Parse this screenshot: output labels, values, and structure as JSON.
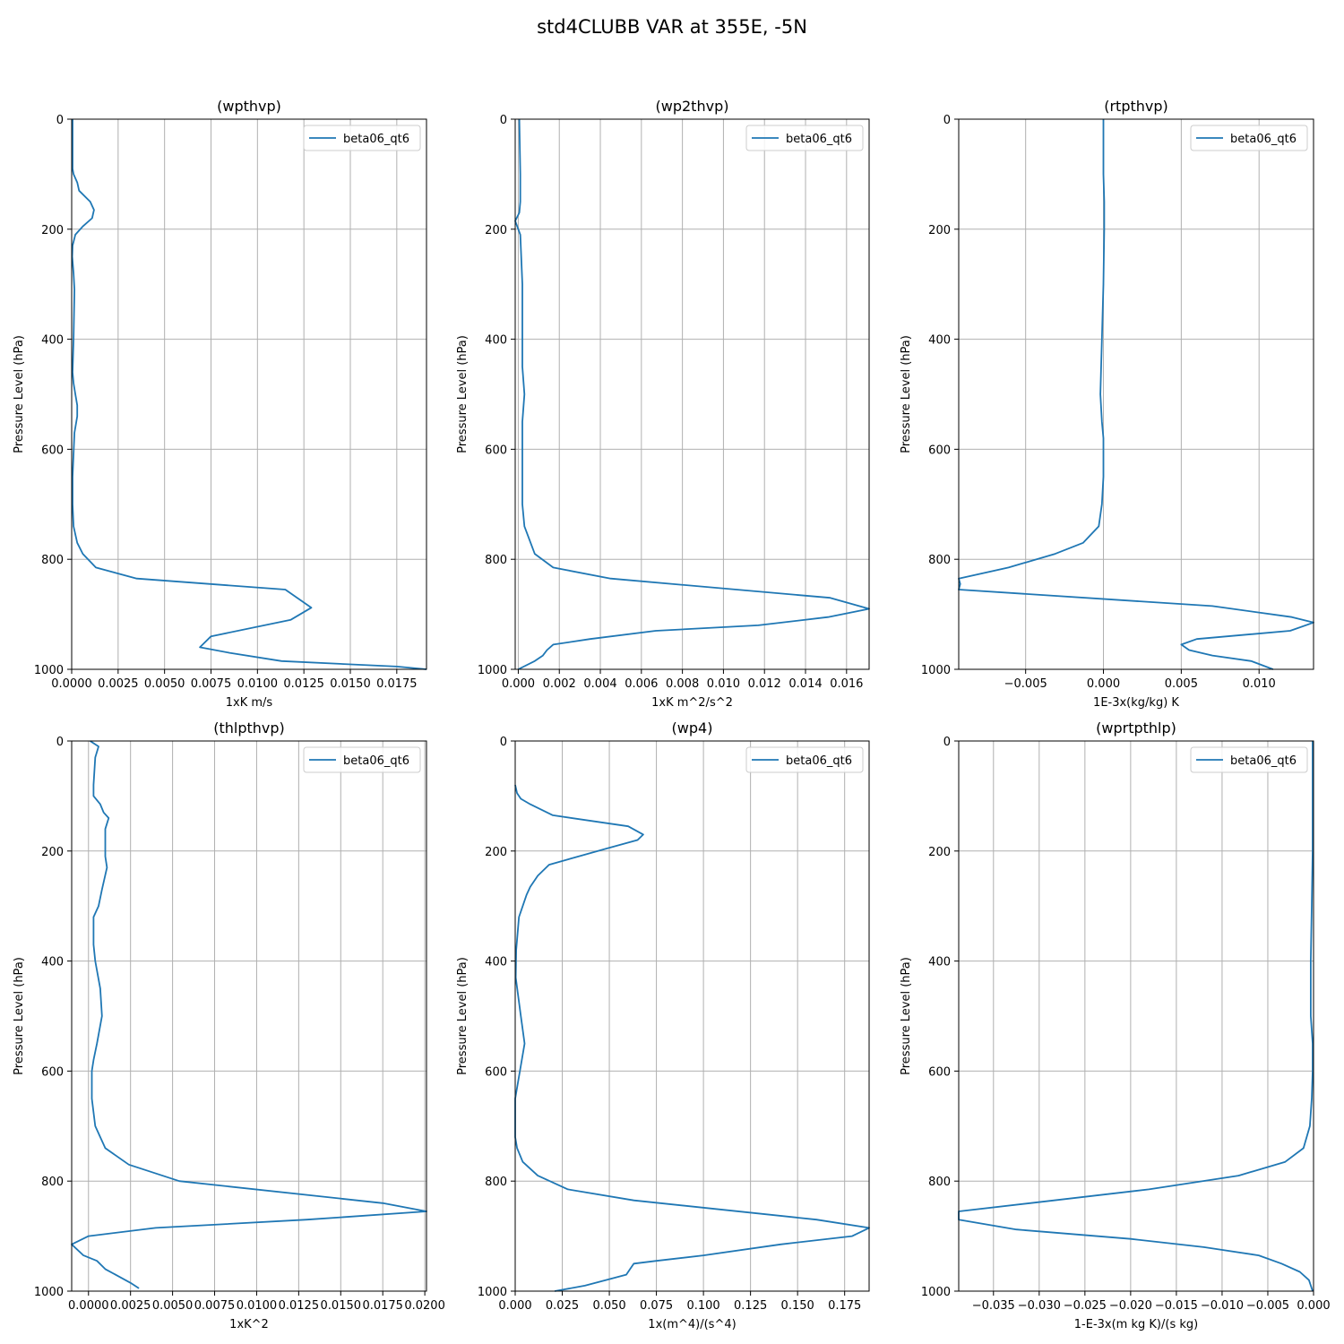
{
  "figure_title": "std4CLUBB VAR at 355E, -5N",
  "colors": {
    "series": "#1f77b4",
    "grid": "#b0b0b0"
  },
  "chart_data": [
    {
      "type": "line",
      "title": "(wpthvp)",
      "xlabel": "1xK m/s",
      "ylabel": "Pressure Level (hPa)",
      "xlim": [
        0,
        0.0191
      ],
      "ylim": [
        1000,
        0
      ],
      "grid": true,
      "legend": "top-right",
      "xticks": [
        0,
        0.0025,
        0.005,
        0.0075,
        0.01,
        0.0125,
        0.015,
        0.0175
      ],
      "xtick_labels": [
        "0.0000",
        "0.0025",
        "0.0050",
        "0.0075",
        "0.0100",
        "0.0125",
        "0.0150",
        "0.0175"
      ],
      "yticks": [
        0,
        200,
        400,
        600,
        800,
        1000
      ],
      "ytick_labels": [
        "0",
        "200",
        "400",
        "600",
        "800",
        "1000"
      ],
      "series": [
        {
          "name": "beta06_qt6",
          "x": [
            5e-05,
            5e-05,
            5e-05,
            0.0001,
            0.0003,
            0.0004,
            0.001,
            0.0012,
            0.0011,
            0.0006,
            0.0002,
            5e-05,
            3e-05,
            0.0001,
            0.00015,
            0.0001,
            5e-05,
            0.0001,
            0.0002,
            0.0003,
            0.0003,
            0.00015,
            5e-05,
            5e-05,
            0.0001,
            0.0003,
            0.0006,
            0.0013,
            0.0035,
            0.0115,
            0.0129,
            0.0118,
            0.0075,
            0.0069,
            0.0085,
            0.0113,
            0.0175,
            0.0191
          ],
          "y": [
            0,
            60,
            90,
            100,
            115,
            130,
            150,
            165,
            180,
            195,
            210,
            230,
            250,
            280,
            310,
            400,
            460,
            480,
            500,
            520,
            540,
            570,
            650,
            700,
            740,
            770,
            790,
            815,
            835,
            855,
            888,
            910,
            940,
            960,
            970,
            985,
            995,
            1000
          ]
        }
      ]
    },
    {
      "type": "line",
      "title": "(wp2thvp)",
      "xlabel": "1xK m^2/s^2",
      "ylabel": "Pressure Level (hPa)",
      "xlim": [
        -0.00015,
        0.0171
      ],
      "ylim": [
        1000,
        0
      ],
      "grid": true,
      "legend": "top-right",
      "xticks": [
        0,
        0.002,
        0.004,
        0.006,
        0.008,
        0.01,
        0.012,
        0.014,
        0.016
      ],
      "xtick_labels": [
        "0.000",
        "0.002",
        "0.004",
        "0.006",
        "0.008",
        "0.010",
        "0.012",
        "0.014",
        "0.016"
      ],
      "yticks": [
        0,
        200,
        400,
        600,
        800,
        1000
      ],
      "ytick_labels": [
        "0",
        "200",
        "400",
        "600",
        "800",
        "1000"
      ],
      "series": [
        {
          "name": "beta06_qt6",
          "x": [
            5e-05,
            0.0001,
            0.0001,
            5e-05,
            -0.00015,
            0.0001,
            0.0002,
            0.0002,
            0.0003,
            0.0002,
            0.0002,
            0.0002,
            0.0003,
            0.0006,
            0.0008,
            0.0017,
            0.0045,
            0.0152,
            0.0171,
            0.0151,
            0.0117,
            0.0067,
            0.0035,
            0.0017,
            0.0014,
            0.0012,
            0.0008,
            0.0
          ],
          "y": [
            0,
            100,
            150,
            170,
            185,
            210,
            300,
            450,
            500,
            550,
            620,
            700,
            740,
            770,
            790,
            815,
            835,
            870,
            890,
            905,
            920,
            930,
            945,
            955,
            965,
            975,
            985,
            1000
          ]
        }
      ]
    },
    {
      "type": "line",
      "title": "(rtpthvp)",
      "xlabel": "1E-3x(kg/kg) K",
      "ylabel": "Pressure Level (hPa)",
      "xlim": [
        -0.0093,
        0.0135
      ],
      "ylim": [
        1000,
        0
      ],
      "grid": true,
      "legend": "top-right",
      "xticks": [
        -0.005,
        0,
        0.005,
        0.01
      ],
      "xtick_labels": [
        "−0.005",
        "0.000",
        "0.005",
        "0.010"
      ],
      "yticks": [
        0,
        200,
        400,
        600,
        800,
        1000
      ],
      "ytick_labels": [
        "0",
        "200",
        "400",
        "600",
        "800",
        "1000"
      ],
      "series": [
        {
          "name": "beta06_qt6",
          "x": [
            0.0,
            0.0,
            5e-05,
            5e-05,
            0.0,
            -0.0001,
            -0.0002,
            -0.0001,
            0.0,
            0.0,
            -0.0001,
            -0.0003,
            -0.0013,
            -0.0031,
            -0.0061,
            -0.0093,
            -0.0092,
            -0.0093,
            0.007,
            0.0121,
            0.0135,
            0.012,
            0.006,
            0.005,
            0.0055,
            0.007,
            0.0095,
            0.0109
          ],
          "y": [
            0,
            100,
            150,
            200,
            300,
            400,
            500,
            550,
            580,
            650,
            700,
            740,
            770,
            790,
            815,
            835,
            845,
            855,
            885,
            905,
            915,
            930,
            945,
            955,
            965,
            975,
            985,
            1000
          ]
        }
      ]
    },
    {
      "type": "line",
      "title": "(thlpthvp)",
      "xlabel": "1xK^2",
      "ylabel": "Pressure Level (hPa)",
      "xlim": [
        -0.001,
        0.0201
      ],
      "ylim": [
        1000,
        0
      ],
      "grid": true,
      "legend": "top-right",
      "xticks": [
        0,
        0.0025,
        0.005,
        0.0075,
        0.01,
        0.0125,
        0.015,
        0.0175,
        0.02
      ],
      "xtick_labels": [
        "0.0000",
        "0.0025",
        "0.0050",
        "0.0075",
        "0.0100",
        "0.0125",
        "0.0150",
        "0.0175",
        "0.0200"
      ],
      "yticks": [
        0,
        200,
        400,
        600,
        800,
        1000
      ],
      "ytick_labels": [
        "0",
        "200",
        "400",
        "600",
        "800",
        "1000"
      ],
      "series": [
        {
          "name": "beta06_qt6",
          "x": [
            0.0001,
            0.0006,
            0.0004,
            0.0003,
            0.0003,
            0.0007,
            0.0009,
            0.0012,
            0.001,
            0.001,
            0.0011,
            0.0008,
            0.0006,
            0.0003,
            0.0003,
            0.0004,
            0.0007,
            0.0008,
            0.0005,
            0.0003,
            0.0002,
            0.0002,
            0.0004,
            0.001,
            0.0024,
            0.0054,
            0.0175,
            0.0201,
            0.013,
            0.004,
            0.0,
            -0.001,
            -0.0003,
            0.0005,
            0.001,
            0.0025,
            0.003
          ],
          "y": [
            0,
            10,
            30,
            80,
            100,
            115,
            130,
            140,
            160,
            210,
            230,
            270,
            300,
            320,
            370,
            400,
            450,
            500,
            550,
            580,
            600,
            650,
            700,
            740,
            770,
            800,
            840,
            855,
            870,
            885,
            900,
            915,
            935,
            945,
            960,
            985,
            995
          ]
        }
      ]
    },
    {
      "type": "line",
      "title": "(wp4)",
      "xlabel": "1x(m^4)/(s^4)",
      "ylabel": "Pressure Level (hPa)",
      "xlim": [
        0,
        0.188
      ],
      "ylim": [
        1000,
        0
      ],
      "grid": true,
      "legend": "top-right",
      "xticks": [
        0,
        0.025,
        0.05,
        0.075,
        0.1,
        0.125,
        0.15,
        0.175
      ],
      "xtick_labels": [
        "0.000",
        "0.025",
        "0.050",
        "0.075",
        "0.100",
        "0.125",
        "0.150",
        "0.175"
      ],
      "yticks": [
        0,
        200,
        400,
        600,
        800,
        1000
      ],
      "ytick_labels": [
        "0",
        "200",
        "400",
        "600",
        "800",
        "1000"
      ],
      "series": [
        {
          "name": "beta06_qt6",
          "x": [
            0.0,
            0.001,
            0.003,
            0.008,
            0.02,
            0.06,
            0.068,
            0.065,
            0.049,
            0.018,
            0.012,
            0.008,
            0.006,
            0.002,
            0.0005,
            0.0003,
            0.003,
            0.005,
            0.004,
            0.0,
            0.0,
            0.001,
            0.004,
            0.012,
            0.028,
            0.063,
            0.16,
            0.188,
            0.179,
            0.141,
            0.1,
            0.075,
            0.063,
            0.061,
            0.059,
            0.048,
            0.037,
            0.021
          ],
          "y": [
            80,
            95,
            105,
            115,
            135,
            155,
            170,
            180,
            195,
            225,
            245,
            265,
            280,
            320,
            380,
            430,
            500,
            550,
            570,
            650,
            720,
            740,
            765,
            790,
            815,
            835,
            870,
            885,
            900,
            915,
            935,
            945,
            950,
            960,
            970,
            980,
            990,
            1000
          ]
        }
      ]
    },
    {
      "type": "line",
      "title": "(wprtpthlp)",
      "xlabel": "1-E-3x(m kg K)/(s kg)",
      "ylabel": "Pressure Level (hPa)",
      "xlim": [
        -0.0388,
        0.0
      ],
      "ylim": [
        1000,
        0
      ],
      "grid": true,
      "legend": "top-right",
      "xticks": [
        -0.035,
        -0.03,
        -0.025,
        -0.02,
        -0.015,
        -0.01,
        -0.005,
        0
      ],
      "xtick_labels": [
        "−0.035",
        "−0.030",
        "−0.025",
        "−0.020",
        "−0.015",
        "−0.010",
        "−0.005",
        "0.000"
      ],
      "yticks": [
        0,
        200,
        400,
        600,
        800,
        1000
      ],
      "ytick_labels": [
        "0",
        "200",
        "400",
        "600",
        "800",
        "1000"
      ],
      "series": [
        {
          "name": "beta06_qt6",
          "x": [
            -0.0001,
            -0.0001,
            -0.0002,
            -0.0003,
            -0.0003,
            -0.0001,
            -0.0001,
            -0.0002,
            -0.0004,
            -0.0011,
            -0.0031,
            -0.0082,
            -0.018,
            -0.031,
            -0.0388,
            -0.0388,
            -0.0325,
            -0.02,
            -0.012,
            -0.006,
            -0.0035,
            -0.0015,
            -0.0005,
            -0.0001
          ],
          "y": [
            0,
            200,
            300,
            400,
            500,
            550,
            600,
            650,
            700,
            740,
            765,
            790,
            815,
            840,
            855,
            870,
            888,
            905,
            920,
            935,
            950,
            965,
            980,
            1000
          ]
        }
      ]
    }
  ]
}
